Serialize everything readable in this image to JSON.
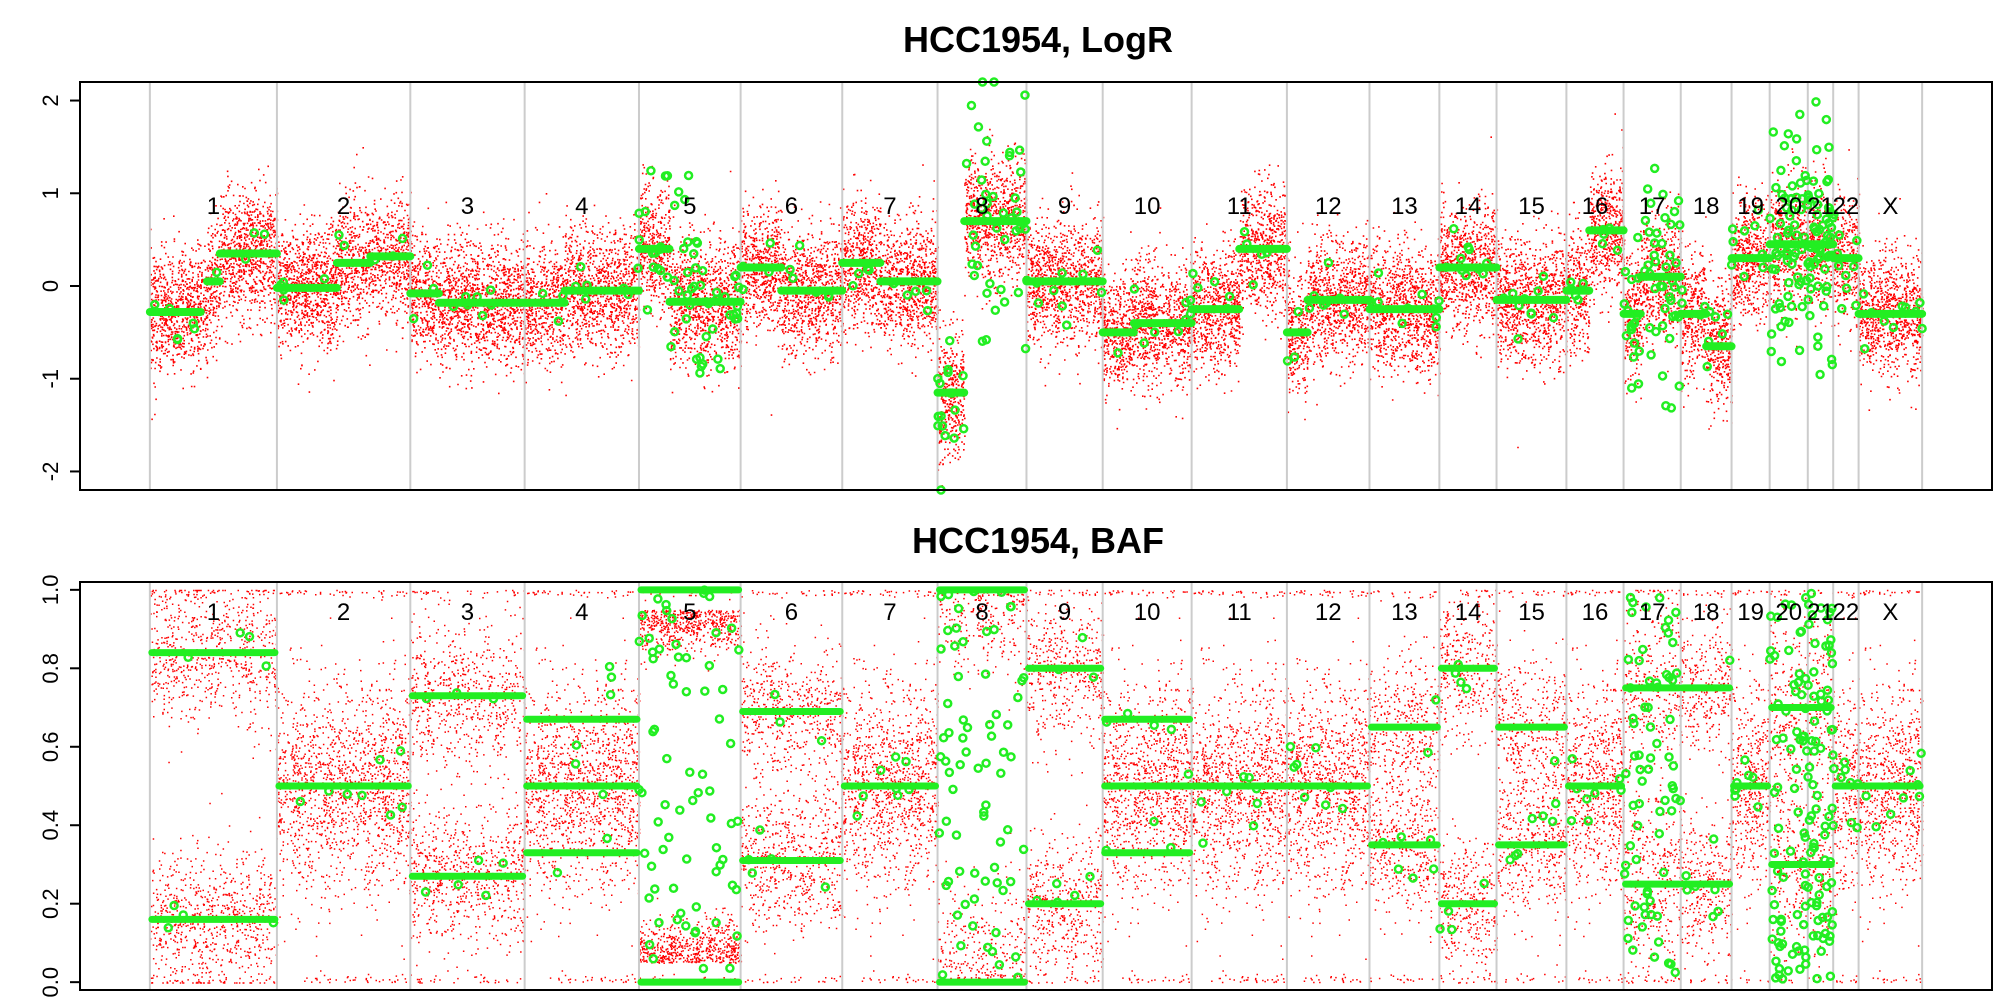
{
  "chart_data": [
    {
      "type": "scatter",
      "title": "HCC1954, LogR",
      "xlabel": "",
      "ylabel": "",
      "ylim": [
        -2.2,
        2.2
      ],
      "yticks": [
        -2,
        -1,
        0,
        1,
        2
      ],
      "ytick_labels": [
        "-2",
        "-1",
        "0",
        "1",
        "2"
      ],
      "grid": false,
      "colors": {
        "raw": "#ff0000",
        "segmented": "#22ee22",
        "separator": "#cccccc"
      },
      "chromosomes": [
        {
          "label": "1",
          "start": 0,
          "end": 1.0,
          "baseline": -0.28,
          "segments": [
            [
              0.0,
              0.4,
              -0.28
            ],
            [
              0.45,
              0.55,
              0.05
            ],
            [
              0.55,
              1.0,
              0.35
            ]
          ]
        },
        {
          "label": "2",
          "start": 1.0,
          "end": 2.05,
          "baseline": 0.0,
          "segments": [
            [
              0.0,
              0.45,
              -0.02
            ],
            [
              0.45,
              0.7,
              0.25
            ],
            [
              0.7,
              1.0,
              0.32
            ]
          ]
        },
        {
          "label": "3",
          "start": 2.05,
          "end": 2.95,
          "baseline": -0.18,
          "segments": [
            [
              0.0,
              0.25,
              -0.08
            ],
            [
              0.25,
              1.0,
              -0.18
            ]
          ]
        },
        {
          "label": "4",
          "start": 2.95,
          "end": 3.85,
          "baseline": -0.1,
          "segments": [
            [
              0.0,
              0.35,
              -0.18
            ],
            [
              0.35,
              1.0,
              -0.05
            ]
          ]
        },
        {
          "label": "5",
          "start": 3.85,
          "end": 4.65,
          "baseline": -0.17,
          "segments": [
            [
              0.0,
              0.3,
              0.4
            ],
            [
              0.3,
              1.0,
              -0.17
            ]
          ]
        },
        {
          "label": "6",
          "start": 4.65,
          "end": 5.45,
          "baseline": 0.0,
          "segments": [
            [
              0.0,
              0.4,
              0.2
            ],
            [
              0.4,
              1.0,
              -0.05
            ]
          ]
        },
        {
          "label": "7",
          "start": 5.45,
          "end": 6.2,
          "baseline": 0.05,
          "segments": [
            [
              0.0,
              0.4,
              0.25
            ],
            [
              0.4,
              1.0,
              0.05
            ]
          ]
        },
        {
          "label": "8",
          "start": 6.2,
          "end": 6.9,
          "baseline": -1.1,
          "segments": [
            [
              0.0,
              0.3,
              -1.15
            ],
            [
              0.3,
              1.0,
              0.7
            ]
          ]
        },
        {
          "label": "9",
          "start": 6.9,
          "end": 7.5,
          "baseline": 0.05,
          "segments": [
            [
              0.0,
              1.0,
              0.05
            ]
          ]
        },
        {
          "label": "10",
          "start": 7.5,
          "end": 8.2,
          "baseline": -0.4,
          "segments": [
            [
              0.0,
              0.35,
              -0.5
            ],
            [
              0.35,
              1.0,
              -0.4
            ]
          ]
        },
        {
          "label": "11",
          "start": 8.2,
          "end": 8.95,
          "baseline": -0.25,
          "segments": [
            [
              0.0,
              0.5,
              -0.25
            ],
            [
              0.5,
              1.0,
              0.4
            ]
          ]
        },
        {
          "label": "12",
          "start": 8.95,
          "end": 9.6,
          "baseline": -0.15,
          "segments": [
            [
              0.0,
              0.25,
              -0.5
            ],
            [
              0.25,
              1.0,
              -0.15
            ]
          ]
        },
        {
          "label": "13",
          "start": 9.6,
          "end": 10.15,
          "baseline": -0.25,
          "segments": [
            [
              0.0,
              1.0,
              -0.25
            ]
          ]
        },
        {
          "label": "14",
          "start": 10.15,
          "end": 10.6,
          "baseline": 0.2,
          "segments": [
            [
              0.0,
              1.0,
              0.2
            ]
          ]
        },
        {
          "label": "15",
          "start": 10.6,
          "end": 11.15,
          "baseline": -0.15,
          "segments": [
            [
              0.0,
              1.0,
              -0.15
            ]
          ]
        },
        {
          "label": "16",
          "start": 11.15,
          "end": 11.6,
          "baseline": 0.3,
          "segments": [
            [
              0.0,
              0.4,
              -0.05
            ],
            [
              0.4,
              1.0,
              0.6
            ]
          ]
        },
        {
          "label": "17",
          "start": 11.6,
          "end": 12.05,
          "baseline": -0.3,
          "segments": [
            [
              0.0,
              0.3,
              -0.3
            ],
            [
              0.3,
              1.0,
              0.1
            ]
          ]
        },
        {
          "label": "18",
          "start": 12.05,
          "end": 12.45,
          "baseline": -0.5,
          "segments": [
            [
              0.0,
              0.5,
              -0.3
            ],
            [
              0.5,
              1.0,
              -0.65
            ]
          ]
        },
        {
          "label": "19",
          "start": 12.45,
          "end": 12.75,
          "baseline": 0.3,
          "segments": [
            [
              0.0,
              1.0,
              0.3
            ]
          ]
        },
        {
          "label": "20",
          "start": 12.75,
          "end": 13.05,
          "baseline": -0.2,
          "segments": [
            [
              0.0,
              1.0,
              0.45
            ]
          ]
        },
        {
          "label": "21",
          "start": 13.05,
          "end": 13.25,
          "baseline": 0.1,
          "segments": [
            [
              0.0,
              1.0,
              0.45
            ]
          ]
        },
        {
          "label": "22",
          "start": 13.25,
          "end": 13.45,
          "baseline": 0.0,
          "segments": [
            [
              0.0,
              1.0,
              0.3
            ]
          ]
        },
        {
          "label": "X",
          "start": 13.45,
          "end": 13.95,
          "baseline": -0.2,
          "segments": [
            [
              0.0,
              1.0,
              -0.3
            ]
          ]
        }
      ],
      "x_extent": [
        -0.55,
        14.5
      ]
    },
    {
      "type": "scatter",
      "title": "HCC1954, BAF",
      "xlabel": "",
      "ylabel": "",
      "ylim": [
        -0.02,
        1.02
      ],
      "yticks": [
        0.0,
        0.2,
        0.4,
        0.6,
        0.8,
        1.0
      ],
      "ytick_labels": [
        "0.0",
        "0.2",
        "0.4",
        "0.6",
        "0.8",
        "1.0"
      ],
      "grid": false,
      "colors": {
        "raw": "#ff0000",
        "segmented": "#22ee22",
        "separator": "#cccccc"
      },
      "chromosomes": [
        {
          "label": "1",
          "bands": [
            0.16,
            0.84
          ],
          "pattern": "split"
        },
        {
          "label": "2",
          "bands": [
            0.5
          ],
          "pattern": "het"
        },
        {
          "label": "3",
          "bands": [
            0.27,
            0.73
          ],
          "pattern": "split"
        },
        {
          "label": "4",
          "bands": [
            0.33,
            0.67,
            0.5
          ],
          "pattern": "mixed"
        },
        {
          "label": "5",
          "bands": [
            0.0,
            1.0
          ],
          "pattern": "loh"
        },
        {
          "label": "6",
          "bands": [
            0.31,
            0.69
          ],
          "pattern": "split"
        },
        {
          "label": "7",
          "bands": [
            0.5
          ],
          "pattern": "het"
        },
        {
          "label": "8",
          "bands": [
            0.0,
            1.0
          ],
          "pattern": "noisy"
        },
        {
          "label": "9",
          "bands": [
            0.2,
            0.8
          ],
          "pattern": "split"
        },
        {
          "label": "10",
          "bands": [
            0.33,
            0.67,
            0.5
          ],
          "pattern": "mixed"
        },
        {
          "label": "11",
          "bands": [
            0.5
          ],
          "pattern": "het"
        },
        {
          "label": "12",
          "bands": [
            0.5
          ],
          "pattern": "het"
        },
        {
          "label": "13",
          "bands": [
            0.35,
            0.65
          ],
          "pattern": "split"
        },
        {
          "label": "14",
          "bands": [
            0.2,
            0.8
          ],
          "pattern": "split"
        },
        {
          "label": "15",
          "bands": [
            0.35,
            0.65
          ],
          "pattern": "split"
        },
        {
          "label": "16",
          "bands": [
            0.5
          ],
          "pattern": "het"
        },
        {
          "label": "17",
          "bands": [
            0.25,
            0.75
          ],
          "pattern": "noisy"
        },
        {
          "label": "18",
          "bands": [
            0.25,
            0.75
          ],
          "pattern": "split"
        },
        {
          "label": "19",
          "bands": [
            0.5
          ],
          "pattern": "het"
        },
        {
          "label": "20",
          "bands": [
            0.3,
            0.7
          ],
          "pattern": "noisy"
        },
        {
          "label": "21",
          "bands": [
            0.3,
            0.7
          ],
          "pattern": "noisy"
        },
        {
          "label": "22",
          "bands": [
            0.5
          ],
          "pattern": "het"
        },
        {
          "label": "X",
          "bands": [
            0.5
          ],
          "pattern": "het"
        }
      ]
    }
  ]
}
